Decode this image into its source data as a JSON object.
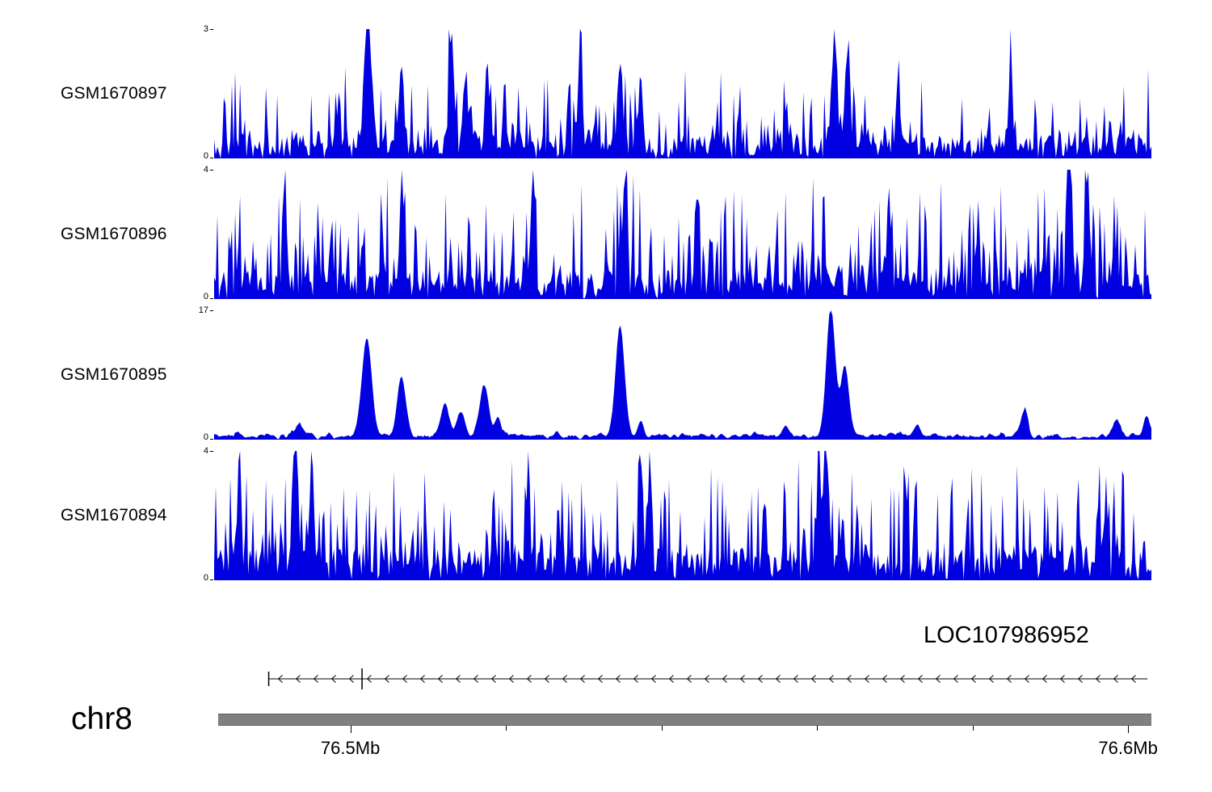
{
  "page": {
    "background": "#ffffff"
  },
  "labels": {
    "chromosome": "chr8"
  },
  "chart_data": {
    "type": "area",
    "description": "Genome browser read-coverage tracks for four GEO samples over chr8 ~76.48-76.60 Mb, with minus-strand gene model LOC107986952 and chromosome axis",
    "signal_color": "#0000e0",
    "region": {
      "chromosome": "chr8",
      "start_mb": 76.483,
      "end_mb": 76.603
    },
    "x_axis": {
      "bar_color": "#808080",
      "major_ticks": [
        {
          "mb": 76.5,
          "label": "76.5Mb"
        },
        {
          "mb": 76.6,
          "label": "76.6Mb"
        }
      ],
      "minor_ticks_mb": [
        76.52,
        76.54,
        76.56,
        76.58
      ]
    },
    "tracks": [
      {
        "label": "GSM1670897",
        "ylim": [
          0,
          3
        ],
        "y_top": "3",
        "y_bottom": "0",
        "seed": 8971,
        "n_points": 580,
        "noise_base": 0.55,
        "spike_prob": 0.5,
        "noise_amp": 1.7,
        "noise_pow": 2.6,
        "smooth": 0,
        "peaks": [
          {
            "x": 0.164,
            "h": 3.1,
            "w": 0.004
          },
          {
            "x": 0.2,
            "h": 1.9,
            "w": 0.0025
          },
          {
            "x": 0.253,
            "h": 2.5,
            "w": 0.0025
          },
          {
            "x": 0.268,
            "h": 1.8,
            "w": 0.002
          },
          {
            "x": 0.291,
            "h": 2.1,
            "w": 0.002
          },
          {
            "x": 0.39,
            "h": 1.8,
            "w": 0.002
          },
          {
            "x": 0.433,
            "h": 2.1,
            "w": 0.0025
          },
          {
            "x": 0.455,
            "h": 1.9,
            "w": 0.002
          },
          {
            "x": 0.662,
            "h": 2.5,
            "w": 0.003
          },
          {
            "x": 0.676,
            "h": 2.4,
            "w": 0.0025
          },
          {
            "x": 0.73,
            "h": 1.8,
            "w": 0.002
          },
          {
            "x": 0.85,
            "h": 1.7,
            "w": 0.002
          }
        ]
      },
      {
        "label": "GSM1670896",
        "ylim": [
          0,
          4
        ],
        "y_top": "4",
        "y_bottom": "0",
        "seed": 8962,
        "n_points": 580,
        "noise_base": 0.9,
        "spike_prob": 0.6,
        "noise_amp": 3.1,
        "noise_pow": 2.2,
        "smooth": 0,
        "peaks": [
          {
            "x": 0.075,
            "h": 3.4,
            "w": 0.002
          },
          {
            "x": 0.2,
            "h": 3.4,
            "w": 0.002
          },
          {
            "x": 0.34,
            "h": 3.5,
            "w": 0.002
          },
          {
            "x": 0.438,
            "h": 3.6,
            "w": 0.002
          },
          {
            "x": 0.72,
            "h": 3.4,
            "w": 0.002
          },
          {
            "x": 0.912,
            "h": 4.0,
            "w": 0.002
          },
          {
            "x": 0.932,
            "h": 3.3,
            "w": 0.002
          }
        ]
      },
      {
        "label": "GSM1670895",
        "ylim": [
          0,
          17
        ],
        "y_top": "17",
        "y_bottom": "0",
        "seed": 8953,
        "n_points": 580,
        "noise_base": 0.9,
        "spike_prob": 0.3,
        "noise_amp": 1.1,
        "noise_pow": 3,
        "smooth": 1,
        "peaks": [
          {
            "x": 0.091,
            "h": 1.6,
            "w": 0.004
          },
          {
            "x": 0.163,
            "h": 13.5,
            "w": 0.005
          },
          {
            "x": 0.2,
            "h": 8.0,
            "w": 0.0045
          },
          {
            "x": 0.246,
            "h": 4.4,
            "w": 0.004
          },
          {
            "x": 0.263,
            "h": 3.3,
            "w": 0.004
          },
          {
            "x": 0.288,
            "h": 7.2,
            "w": 0.0045
          },
          {
            "x": 0.303,
            "h": 3.0,
            "w": 0.003
          },
          {
            "x": 0.433,
            "h": 15.5,
            "w": 0.0045
          },
          {
            "x": 0.455,
            "h": 2.0,
            "w": 0.003
          },
          {
            "x": 0.61,
            "h": 1.6,
            "w": 0.003
          },
          {
            "x": 0.658,
            "h": 18.0,
            "w": 0.0045
          },
          {
            "x": 0.673,
            "h": 10.0,
            "w": 0.004
          },
          {
            "x": 0.75,
            "h": 1.8,
            "w": 0.003
          },
          {
            "x": 0.865,
            "h": 3.9,
            "w": 0.003
          },
          {
            "x": 0.962,
            "h": 2.6,
            "w": 0.003
          },
          {
            "x": 0.995,
            "h": 3.0,
            "w": 0.003
          }
        ]
      },
      {
        "label": "GSM1670894",
        "ylim": [
          0,
          4
        ],
        "y_top": "4",
        "y_bottom": "0",
        "seed": 8944,
        "n_points": 580,
        "noise_base": 1.0,
        "spike_prob": 0.6,
        "noise_amp": 2.9,
        "noise_pow": 2.2,
        "smooth": 0,
        "peaks": [
          {
            "x": 0.027,
            "h": 3.2,
            "w": 0.002
          },
          {
            "x": 0.088,
            "h": 3.4,
            "w": 0.002
          },
          {
            "x": 0.104,
            "h": 4.0,
            "w": 0.002
          },
          {
            "x": 0.335,
            "h": 3.3,
            "w": 0.002
          },
          {
            "x": 0.455,
            "h": 3.6,
            "w": 0.002
          },
          {
            "x": 0.465,
            "h": 3.5,
            "w": 0.002
          },
          {
            "x": 0.645,
            "h": 3.7,
            "w": 0.002
          },
          {
            "x": 0.652,
            "h": 3.5,
            "w": 0.002
          }
        ]
      }
    ],
    "gene_track": {
      "name": "LOC107986952",
      "strand": "-",
      "line_start_mb": 76.4895,
      "line_end_mb": 76.6025,
      "exon_ticks_mb": [
        76.4895,
        76.5015
      ],
      "arrow_spacing_px": 22
    }
  }
}
